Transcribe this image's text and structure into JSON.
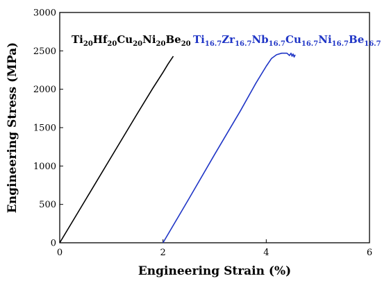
{
  "chart_data": {
    "type": "line",
    "xlabel": "Engineering Strain (%)",
    "ylabel": "Engineering Stress (MPa)",
    "xlim": [
      0,
      6
    ],
    "ylim": [
      0,
      3000
    ],
    "x_ticks": [
      0,
      2,
      4,
      6
    ],
    "y_ticks": [
      0,
      500,
      1000,
      1500,
      2000,
      2500,
      3000
    ],
    "grid": false,
    "legend_placement": "top",
    "series": [
      {
        "name": "Ti20Hf20Cu20Ni20Be20",
        "name_parts": [
          {
            "t": "Ti",
            "sub": false
          },
          {
            "t": "20",
            "sub": true
          },
          {
            "t": "Hf",
            "sub": false
          },
          {
            "t": "20",
            "sub": true
          },
          {
            "t": "Cu",
            "sub": false
          },
          {
            "t": "20",
            "sub": true
          },
          {
            "t": "Ni",
            "sub": false
          },
          {
            "t": "20",
            "sub": true
          },
          {
            "t": "Be",
            "sub": false
          },
          {
            "t": "20",
            "sub": true
          }
        ],
        "color": "#000000",
        "x": [
          0,
          0.5,
          1.0,
          1.5,
          1.8,
          2.0,
          2.1,
          2.2
        ],
        "y": [
          0,
          560,
          1120,
          1680,
          2010,
          2220,
          2330,
          2430
        ]
      },
      {
        "name": "Ti16.7Zr16.7Nb16.7Cu16.7Ni16.7Be16.7",
        "name_parts": [
          {
            "t": "Ti",
            "sub": false
          },
          {
            "t": "16.7",
            "sub": true
          },
          {
            "t": "Zr",
            "sub": false
          },
          {
            "t": "16.7",
            "sub": true
          },
          {
            "t": "Nb",
            "sub": false
          },
          {
            "t": "16.7",
            "sub": true
          },
          {
            "t": "Cu",
            "sub": false
          },
          {
            "t": "16.7",
            "sub": true
          },
          {
            "t": "Ni",
            "sub": false
          },
          {
            "t": "16.7",
            "sub": true
          },
          {
            "t": "Be",
            "sub": false
          },
          {
            "t": "16.7",
            "sub": true
          }
        ],
        "color": "#1f35c6",
        "x": [
          2.0,
          2.5,
          3.0,
          3.5,
          3.8,
          4.0,
          4.1,
          4.2,
          4.3,
          4.4,
          4.45,
          4.48,
          4.5,
          4.52,
          4.54,
          4.56
        ],
        "y": [
          0,
          570,
          1150,
          1720,
          2080,
          2300,
          2400,
          2450,
          2470,
          2470,
          2440,
          2470,
          2430,
          2460,
          2420,
          2450
        ]
      }
    ]
  }
}
